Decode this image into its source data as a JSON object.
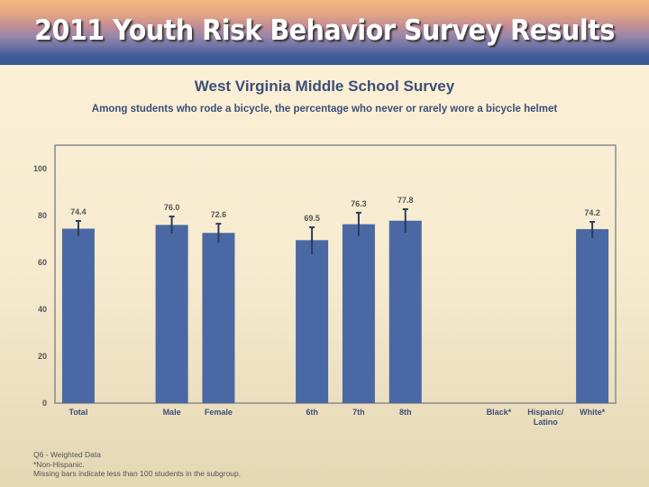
{
  "banner": {
    "title": "2011 Youth Risk Behavior Survey Results"
  },
  "subtitle": "West Virginia Middle School Survey",
  "description": "Among students who rode a bicycle, the percentage who never or rarely wore a bicycle helmet",
  "notes": [
    "Q6 - Weighted Data",
    "*Non-Hispanic.",
    "Missing bars indicate less than 100 students in the subgroup."
  ],
  "colors": {
    "bar": "#4a68a3",
    "error_bar": "#2e3c5c",
    "label": "#3d4e78"
  },
  "chart_data": {
    "type": "bar",
    "categories": [
      "Total",
      "",
      "Male",
      "Female",
      "",
      "6th",
      "7th",
      "8th",
      "",
      "Black*",
      "Hispanic/\nLatino",
      "White*"
    ],
    "values": [
      74.4,
      null,
      76.0,
      72.6,
      null,
      69.5,
      76.3,
      77.8,
      null,
      null,
      null,
      74.2
    ],
    "data_labels": [
      "74.4",
      "",
      "76.0",
      "72.6",
      "",
      "69.5",
      "76.3",
      "77.8",
      "",
      "",
      "",
      "74.2"
    ],
    "ci_lower": [
      71.2,
      null,
      72.3,
      68.5,
      null,
      63.5,
      71.2,
      72.7,
      null,
      null,
      null,
      70.4
    ],
    "ci_upper": [
      77.7,
      null,
      79.6,
      76.5,
      null,
      75.0,
      81.2,
      82.7,
      null,
      null,
      null,
      77.3
    ],
    "yticks": [
      "0",
      "20",
      "40",
      "60",
      "80",
      "100"
    ],
    "ylim": [
      0,
      100
    ],
    "grid": false
  }
}
